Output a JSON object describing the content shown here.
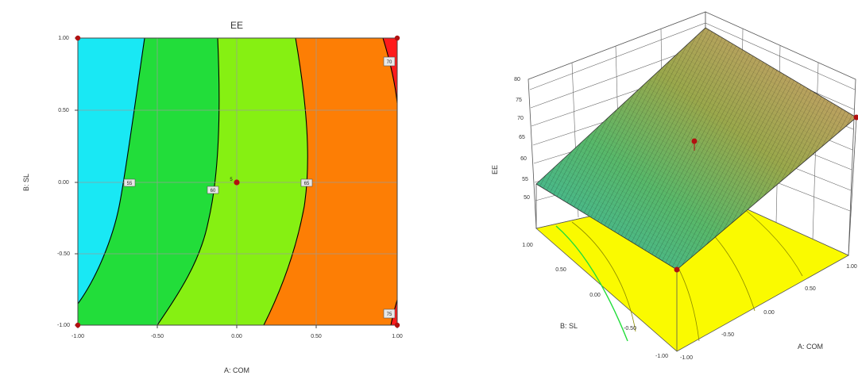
{
  "chart_data": [
    {
      "type": "contour",
      "title": "EE",
      "xlabel": "A: COM",
      "ylabel": "B: SL",
      "xlim": [
        -1,
        1
      ],
      "ylim": [
        -1,
        1
      ],
      "x_ticks": [
        "-1.00",
        "-0.50",
        "0.00",
        "0.50",
        "1.00"
      ],
      "y_ticks": [
        "1.00",
        "0.50",
        "0.00",
        "-0.50",
        "-1.00"
      ],
      "grid": true,
      "contour_levels": [
        55,
        60,
        65,
        70,
        75
      ],
      "contour_labels": [
        "55",
        "60",
        "65",
        "70",
        "75",
        "75"
      ],
      "design_points": [
        {
          "x": -1,
          "y": 1
        },
        {
          "x": 1,
          "y": 1
        },
        {
          "x": -1,
          "y": -1
        },
        {
          "x": 1,
          "y": -1
        },
        {
          "x": 0,
          "y": 0
        }
      ],
      "center_label": "5",
      "region_colors": [
        "#19e8f4",
        "#22dd3a",
        "#86f012",
        "#fd7e05",
        "#ff1b1b"
      ]
    },
    {
      "type": "surface",
      "zlabel": "EE",
      "xlabel": "A: COM",
      "ylabel": "B: SL",
      "z_ticks": [
        "50",
        "55",
        "60",
        "65",
        "70",
        "75",
        "80"
      ],
      "x_ticks": [
        "-1.00",
        "-0.50",
        "0.00",
        "0.50",
        "1.00"
      ],
      "y_ticks": [
        "-1.00",
        "-0.50",
        "0.00",
        "0.50",
        "1.00"
      ],
      "zlim": [
        50,
        80
      ],
      "floor_color": "#fafa00"
    }
  ]
}
